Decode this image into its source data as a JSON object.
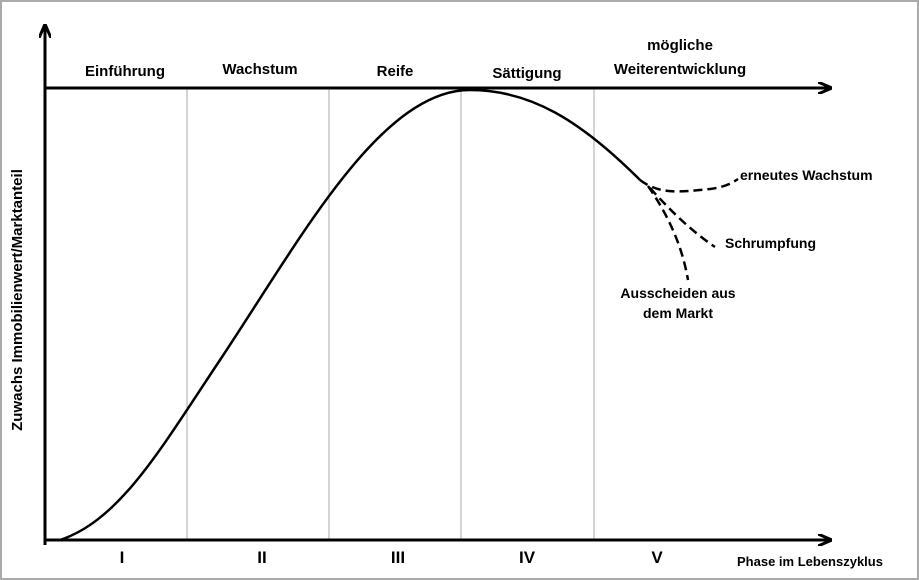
{
  "y_axis_label": "Zuwachs Immobilienwert/Marktanteil",
  "x_axis_label": "Phase im Lebenszyklus",
  "phases": [
    {
      "name": "Einführung",
      "numeral": "I"
    },
    {
      "name": "Wachstum",
      "numeral": "II"
    },
    {
      "name": "Reife",
      "numeral": "III"
    },
    {
      "name": "Sättigung",
      "numeral": "IV"
    },
    {
      "name_lines": [
        "mögliche",
        "Weiterentwicklung"
      ],
      "numeral": "V"
    }
  ],
  "branches": [
    {
      "label_lines": [
        "erneutes Wachstum"
      ]
    },
    {
      "label_lines": [
        "Schrumpfung"
      ]
    },
    {
      "label_lines": [
        "Ausscheiden aus",
        "dem Markt"
      ]
    }
  ]
}
